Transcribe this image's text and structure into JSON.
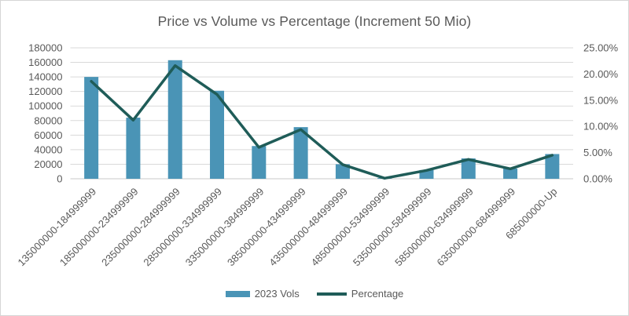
{
  "frame": {
    "background": "#ffffff",
    "border_color": "#d6d6d6"
  },
  "chart_data": {
    "type": "combo",
    "title": "Price vs Volume vs Percentage (Increment 50 Mio)",
    "categories": [
      "135000000-184999999",
      "185000000-234999999",
      "235000000-284999999",
      "285000000-334999999",
      "335000000-384999999",
      "385000000-434999999",
      "435000000-484999999",
      "485000000-534999999",
      "535000000-584999999",
      "585000000-634999999",
      "635000000-684999999",
      "685000000-Up"
    ],
    "series": [
      {
        "name": "2023 Vols",
        "type": "bar",
        "axis": "left",
        "color": "#4A94B6",
        "values": [
          140000,
          84000,
          163000,
          121000,
          45000,
          71000,
          20000,
          1000,
          12000,
          28000,
          14000,
          34000
        ]
      },
      {
        "name": "Percentage",
        "type": "line",
        "axis": "right",
        "color": "#1F5C58",
        "values": [
          18.6,
          11.2,
          21.6,
          16.1,
          6.0,
          9.4,
          2.7,
          0.1,
          1.6,
          3.7,
          1.9,
          4.5
        ]
      }
    ],
    "left_axis": {
      "min": 0,
      "max": 180000,
      "step": 20000,
      "tick_labels": [
        "0",
        "20000",
        "40000",
        "60000",
        "80000",
        "100000",
        "120000",
        "140000",
        "160000",
        "180000"
      ]
    },
    "right_axis": {
      "min": 0,
      "max": 25,
      "step": 5,
      "tick_labels": [
        "0.00%",
        "5.00%",
        "10.00%",
        "15.00%",
        "20.00%",
        "25.00%"
      ]
    },
    "legend_position": "bottom",
    "grid": true,
    "text_color": "#595959",
    "gridline_color": "#D9D9D9",
    "axisline_color": "#C9C9C9"
  }
}
